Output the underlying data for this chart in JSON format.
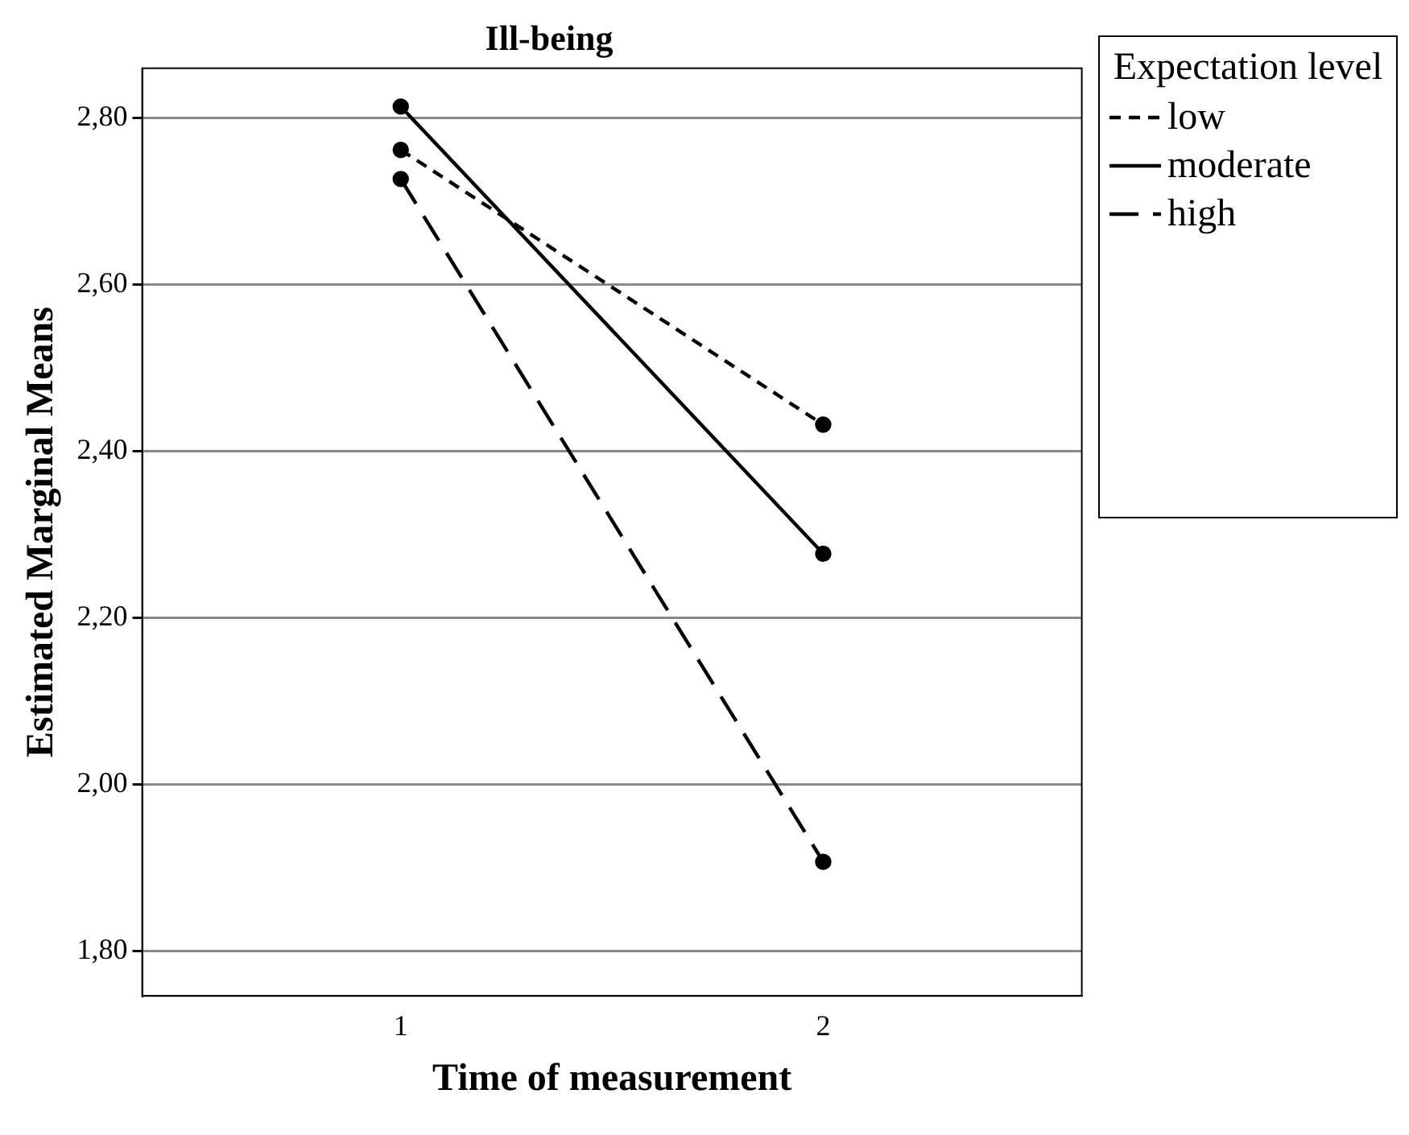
{
  "chart_data": {
    "type": "line",
    "title": "Ill-being",
    "xlabel": "Time of measurement",
    "ylabel": "Estimated Marginal Means",
    "legend_title": "Expectation level",
    "x": [
      1,
      2
    ],
    "xlim": [
      0.388,
      2.612
    ],
    "xticks": [
      1,
      2
    ],
    "ylim": [
      1.746,
      2.86
    ],
    "yticks": [
      {
        "value": 1.8,
        "label": "1,80"
      },
      {
        "value": 2.0,
        "label": "2,00"
      },
      {
        "value": 2.2,
        "label": "2,20"
      },
      {
        "value": 2.4,
        "label": "2,40"
      },
      {
        "value": 2.6,
        "label": "2,60"
      },
      {
        "value": 2.8,
        "label": "2,80"
      }
    ],
    "grid": "y",
    "legend": "top right",
    "marker": "circle",
    "series": [
      {
        "name": "low",
        "color": "#000000",
        "values": [
          2.762,
          2.432
        ],
        "line_style": "dashed"
      },
      {
        "name": "moderate",
        "color": "#000000",
        "values": [
          2.814,
          2.277
        ],
        "line_style": "solid"
      },
      {
        "name": "high",
        "color": "#000000",
        "values": [
          2.727,
          1.907
        ],
        "line_style": "dashed"
      }
    ]
  }
}
